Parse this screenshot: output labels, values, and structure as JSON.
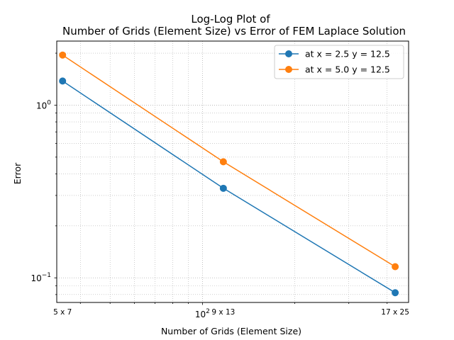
{
  "chart_data": {
    "type": "line",
    "title": "Log-Log Plot of",
    "subtitle": "Number of Grids (Element Size) vs Error of FEM Laplace Solution",
    "xlabel": "Number of Grids (Element Size)",
    "ylabel": "Error",
    "xscale": "log",
    "yscale": "log",
    "grid": "on (major and minor, dotted)",
    "legend_position": "top-right",
    "x_tick_labels": [
      "5 x 7",
      "9 x 13",
      "17 x 25"
    ],
    "x_major_tick": {
      "base": "10",
      "exp": "2"
    },
    "y_major_ticks": [
      {
        "base": "10",
        "exp": "0"
      },
      {
        "base": "10",
        "exp": "−1"
      }
    ],
    "x": [
      35,
      117,
      425
    ],
    "xlim": [
      33.5,
      470
    ],
    "ylim": [
      0.072,
      2.35
    ],
    "series": [
      {
        "name": "at x = 2.5 y = 12.5",
        "color": "#1f77b4",
        "values": [
          1.38,
          0.33,
          0.082
        ]
      },
      {
        "name": "at x = 5.0 y = 12.5",
        "color": "#ff7f0e",
        "values": [
          1.95,
          0.47,
          0.116
        ]
      }
    ]
  }
}
